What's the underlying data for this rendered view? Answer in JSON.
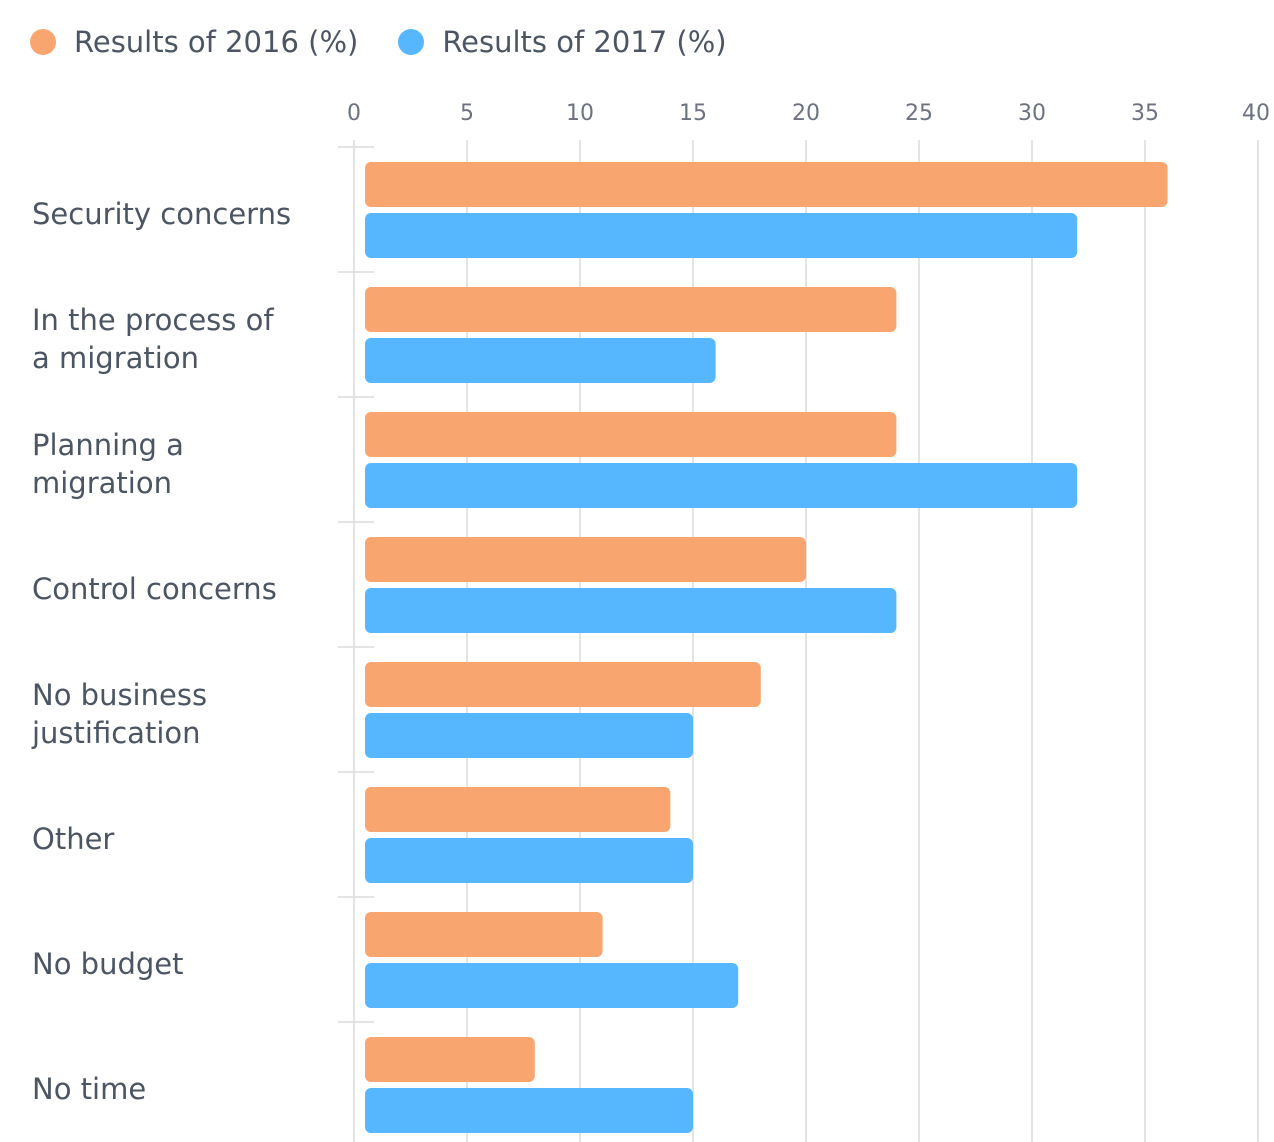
{
  "legend": {
    "series_2016_label": "Results of 2016 (%)",
    "series_2017_label": "Results of 2017 (%)"
  },
  "colors": {
    "series_2016": "#f9a570",
    "series_2017": "#57b7fe",
    "grid": "#dcdcdc",
    "text": "#4b5563"
  },
  "chart_data": {
    "type": "bar",
    "orientation": "horizontal",
    "categories": [
      [
        "Security concerns"
      ],
      [
        "In the process of",
        "a migration"
      ],
      [
        "Planning a",
        "migration"
      ],
      [
        "Control concerns"
      ],
      [
        "No business",
        "justification"
      ],
      [
        "Other"
      ],
      [
        "No budget"
      ],
      [
        "No time"
      ]
    ],
    "series": [
      {
        "name": "Results of 2016 (%)",
        "values": [
          36,
          24,
          24,
          20,
          18,
          14,
          11,
          8
        ]
      },
      {
        "name": "Results of 2017 (%)",
        "values": [
          32,
          16,
          32,
          24,
          15,
          15,
          17,
          15
        ]
      }
    ],
    "xlim": [
      0,
      40
    ],
    "ticks": [
      0,
      5,
      10,
      15,
      20,
      25,
      30,
      35,
      40
    ],
    "grid": true,
    "legend_position": "top-left"
  }
}
